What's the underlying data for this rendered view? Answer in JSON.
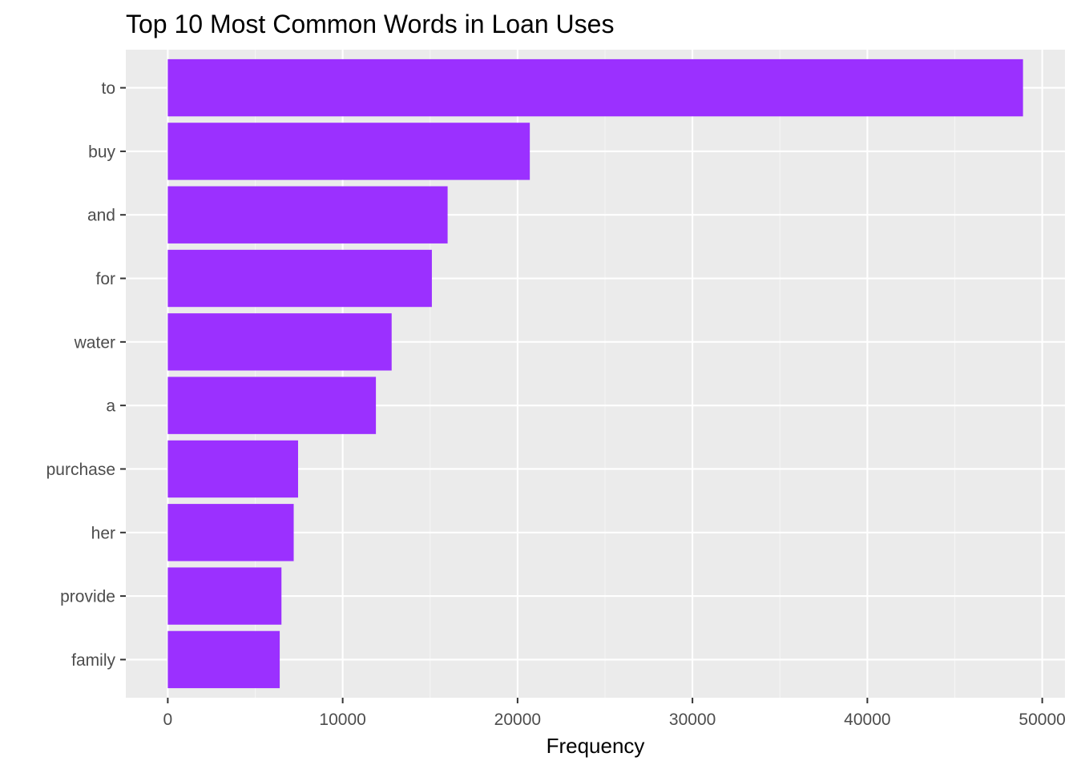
{
  "chart_data": {
    "type": "bar",
    "orientation": "horizontal",
    "title": "Top 10 Most Common Words in Loan Uses",
    "xlabel": "Frequency",
    "ylabel": "",
    "categories": [
      "to",
      "buy",
      "and",
      "for",
      "water",
      "a",
      "purchase",
      "her",
      "provide",
      "family"
    ],
    "values": [
      48900,
      20700,
      16000,
      15100,
      12800,
      11900,
      7450,
      7200,
      6500,
      6400
    ],
    "xlim": [
      -2400,
      51300
    ],
    "x_ticks": [
      0,
      10000,
      20000,
      30000,
      40000,
      50000
    ],
    "x_tick_labels": [
      "0",
      "10000",
      "20000",
      "30000",
      "40000",
      "50000"
    ],
    "grid": true,
    "legend": "none",
    "colors": {
      "bar": "#9B30FF",
      "panel": "#EBEBEB",
      "grid_major": "#FFFFFF",
      "grid_minor": "#F5F5F5",
      "tick_text": "#4D4D4D",
      "tick_mark": "#333333"
    }
  }
}
